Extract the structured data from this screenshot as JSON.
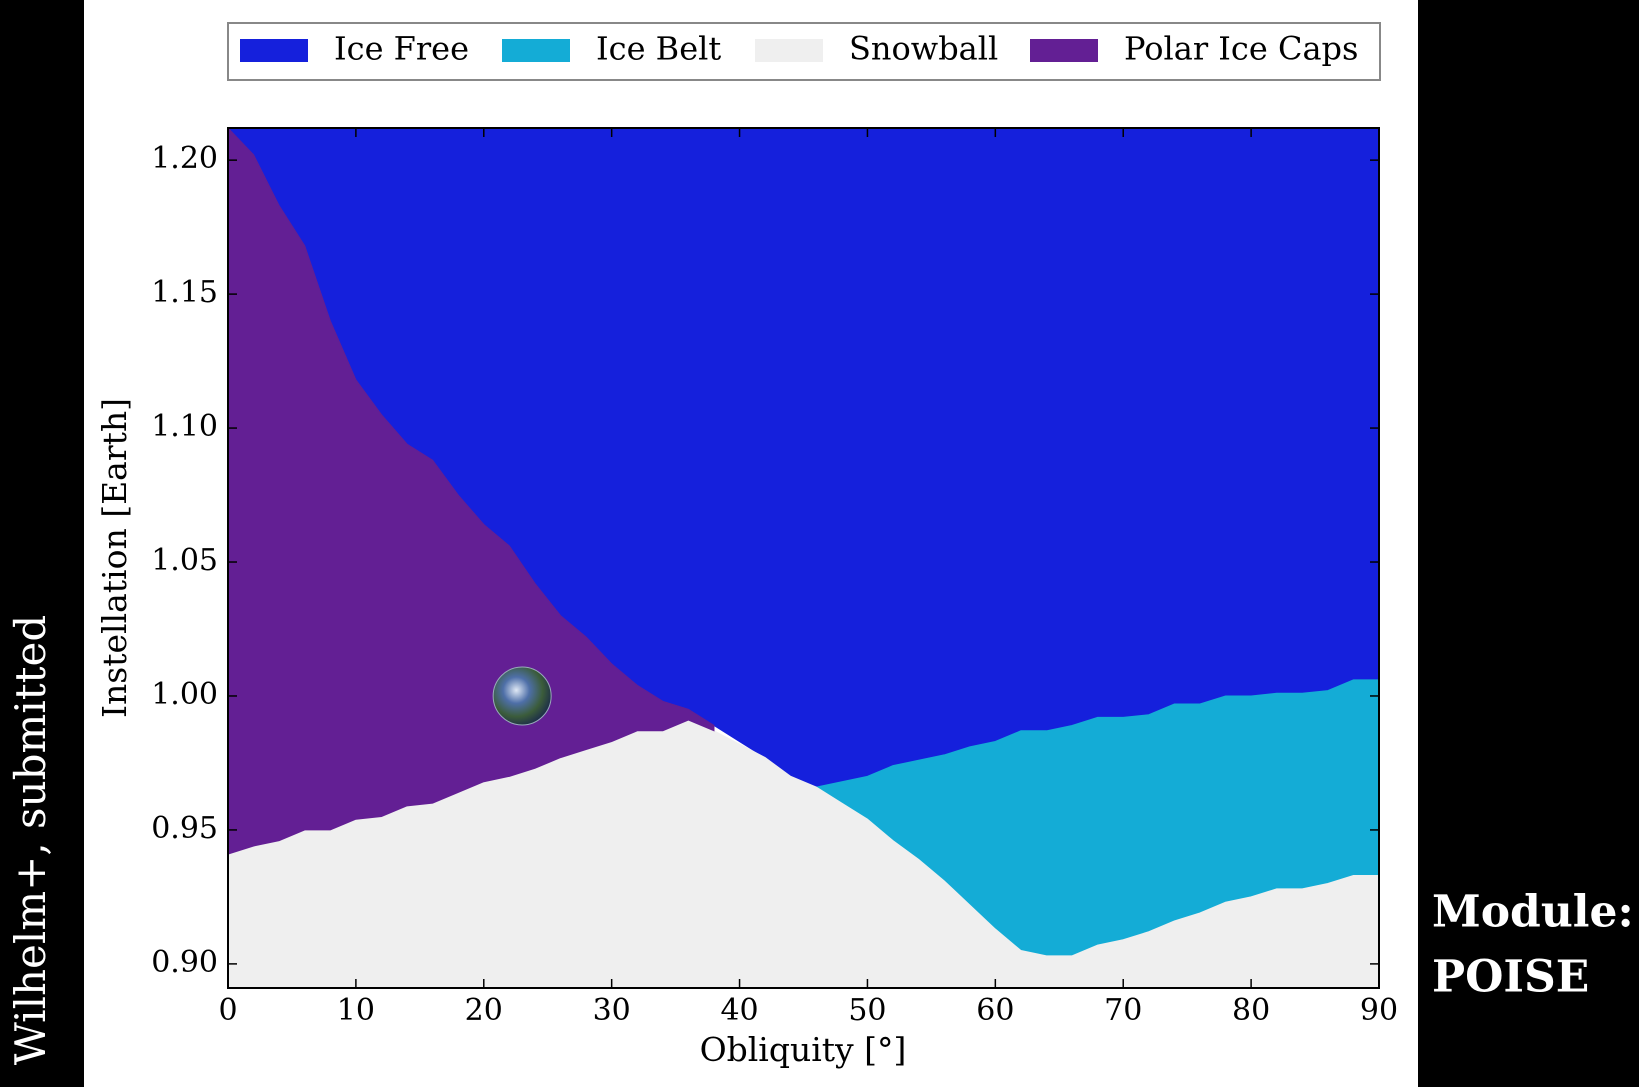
{
  "chart_data": {
    "type": "region",
    "xlabel": "Obliquity [$^\\circ$]",
    "ylabel": "Instellation [Earth]",
    "annotations": [
      "Wilhelm+, submitted",
      "Module:",
      "POISE"
    ],
    "x": [
      0,
      2,
      4,
      6,
      8,
      10,
      12,
      14,
      16,
      18,
      20,
      22,
      24,
      26,
      28,
      30,
      32,
      34,
      36,
      38,
      40,
      42,
      44,
      46,
      48,
      50,
      52,
      54,
      56,
      58,
      60,
      62,
      64,
      66,
      68,
      70,
      72,
      74,
      76,
      78,
      80,
      82,
      84,
      86,
      88,
      90
    ],
    "series": [
      {
        "name": "Ice Free",
        "color": "#1520dc",
        "lower": [
          1.212,
          1.202,
          1.183,
          1.168,
          1.14,
          1.118,
          1.105,
          1.094,
          1.088,
          1.075,
          1.064,
          1.056,
          1.042,
          1.03,
          1.022,
          1.012,
          1.004,
          0.998,
          0.995,
          0.989,
          0.983,
          0.977,
          0.97,
          0.966,
          0.968,
          0.97,
          0.974,
          0.976,
          0.978,
          0.981,
          0.983,
          0.987,
          0.987,
          0.989,
          0.992,
          0.992,
          0.993,
          0.997,
          0.997,
          1.0,
          1.0,
          1.001,
          1.001,
          1.002,
          1.006,
          1.006
        ]
      },
      {
        "name": "Ice Belt",
        "color": "#14acd6",
        "lower": [
          null,
          null,
          null,
          null,
          null,
          null,
          null,
          null,
          null,
          null,
          null,
          null,
          null,
          null,
          null,
          null,
          null,
          null,
          null,
          null,
          null,
          null,
          null,
          0.966,
          0.96,
          0.954,
          0.946,
          0.939,
          0.931,
          0.922,
          0.913,
          0.905,
          0.903,
          0.903,
          0.907,
          0.909,
          0.912,
          0.916,
          0.919,
          0.923,
          0.925,
          0.928,
          0.928,
          0.93,
          0.933,
          0.933
        ],
        "upper": [
          null,
          null,
          null,
          null,
          null,
          null,
          null,
          null,
          null,
          null,
          null,
          null,
          null,
          null,
          null,
          null,
          null,
          null,
          null,
          null,
          null,
          null,
          null,
          0.966,
          0.968,
          0.97,
          0.974,
          0.976,
          0.978,
          0.981,
          0.983,
          0.987,
          0.987,
          0.989,
          0.992,
          0.992,
          0.993,
          0.997,
          0.997,
          1.0,
          1.0,
          1.001,
          1.001,
          1.002,
          1.006,
          1.006
        ]
      },
      {
        "name": "Snowball",
        "color": "#efefef",
        "upper": [
          0.941,
          0.944,
          0.946,
          0.95,
          0.95,
          0.954,
          0.955,
          0.959,
          0.96,
          0.964,
          0.968,
          0.97,
          0.973,
          0.977,
          0.98,
          0.983,
          0.987,
          0.987,
          0.991,
          0.987,
          0.982,
          0.977,
          0.97,
          0.966,
          0.96,
          0.954,
          0.946,
          0.939,
          0.931,
          0.922,
          0.913,
          0.905,
          0.903,
          0.903,
          0.907,
          0.909,
          0.912,
          0.916,
          0.919,
          0.923,
          0.925,
          0.928,
          0.928,
          0.93,
          0.933,
          0.933
        ]
      },
      {
        "name": "Polar Ice Caps",
        "color": "#631f94",
        "lower": [
          0.941,
          0.944,
          0.946,
          0.95,
          0.95,
          0.954,
          0.955,
          0.959,
          0.96,
          0.964,
          0.968,
          0.97,
          0.973,
          0.977,
          0.98,
          0.983,
          0.987,
          0.987,
          0.991,
          0.987,
          null,
          null,
          null,
          null,
          null,
          null,
          null,
          null,
          null,
          null,
          null,
          null,
          null,
          null,
          null,
          null,
          null,
          null,
          null,
          null,
          null,
          null,
          null,
          null,
          null,
          null
        ],
        "upper": [
          1.212,
          1.202,
          1.183,
          1.168,
          1.14,
          1.118,
          1.105,
          1.094,
          1.088,
          1.075,
          1.064,
          1.056,
          1.042,
          1.03,
          1.022,
          1.012,
          1.004,
          0.998,
          0.995,
          0.989,
          null,
          null,
          null,
          null,
          null,
          null,
          null,
          null,
          null,
          null,
          null,
          null,
          null,
          null,
          null,
          null,
          null,
          null,
          null,
          null,
          null,
          null,
          null,
          null,
          null,
          null
        ]
      }
    ],
    "marker": {
      "x": 23,
      "y": 1.0
    },
    "xlim": [
      0,
      90
    ],
    "ylim": [
      0.891,
      1.212
    ],
    "xticks": [
      0,
      10,
      20,
      30,
      40,
      50,
      60,
      70,
      80,
      90
    ],
    "yticks": [
      {
        "value": 0.9,
        "label": "0.90"
      },
      0.95,
      {
        "value": 1.0,
        "label": "1.00"
      },
      1.05,
      {
        "value": 1.1,
        "label": "1.10"
      },
      1.15,
      {
        "value": 1.2,
        "label": "1.20"
      }
    ],
    "legend": "top"
  }
}
